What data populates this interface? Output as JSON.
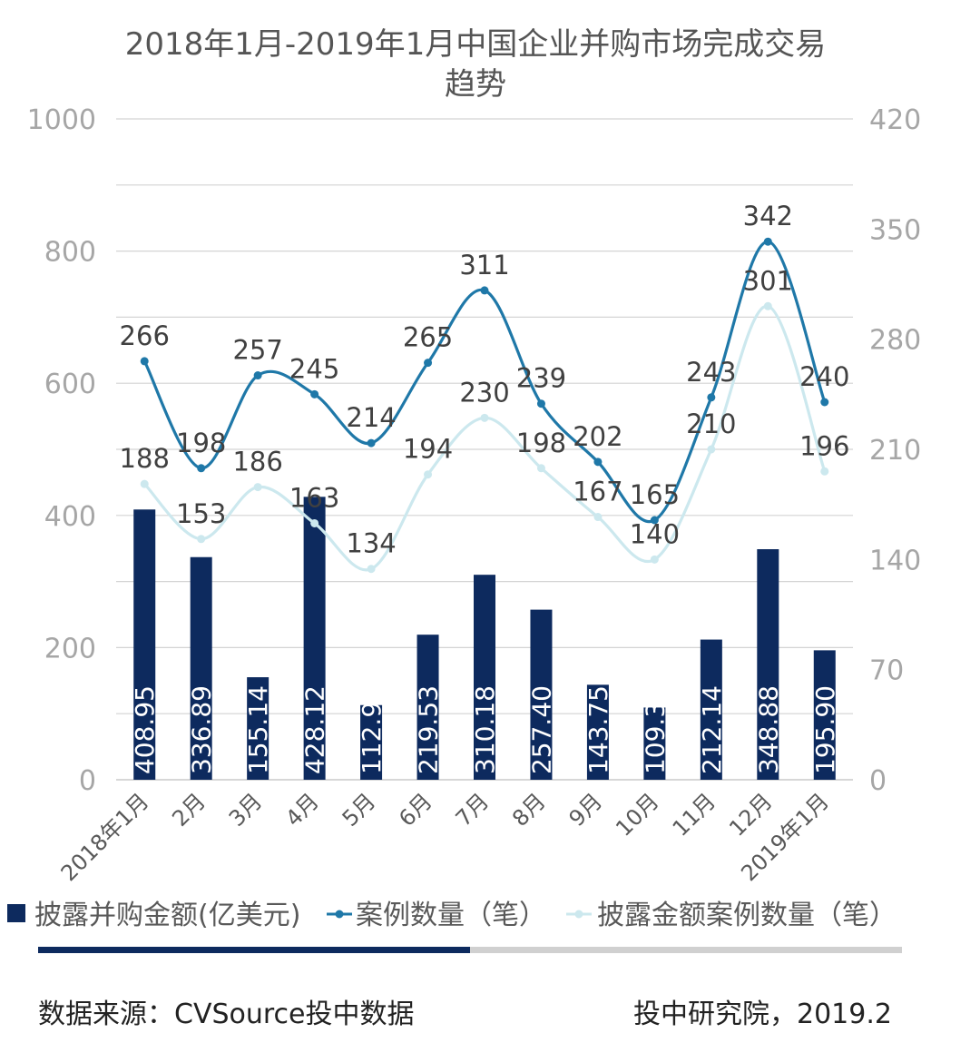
{
  "chart_data": {
    "type": "bar",
    "title_lines": [
      "2018年1月-2019年1月中国企业并购市场完成交易",
      "趋势"
    ],
    "categories": [
      "2018年1月",
      "2月",
      "3月",
      "4月",
      "5月",
      "6月",
      "7月",
      "8月",
      "9月",
      "10月",
      "11月",
      "12月",
      "2019年1月"
    ],
    "y_left_ticks": [
      "0",
      "200",
      "400",
      "600",
      "800",
      "1000"
    ],
    "y_right_ticks": [
      "0",
      "70",
      "140",
      "210",
      "280",
      "350",
      "420"
    ],
    "ylim_left": [
      0,
      1000
    ],
    "ylim_right": [
      0,
      420
    ],
    "grid": true,
    "legend_position": "bottom",
    "series": [
      {
        "name": "披露并购金额(亿美元)",
        "type": "bar",
        "axis": "left",
        "color": "#0d2a5e",
        "values": [
          408.95,
          336.89,
          155.14,
          428.12,
          112.96,
          219.53,
          310.18,
          257.4,
          143.75,
          109.3,
          212.14,
          348.88,
          195.9
        ],
        "labels": [
          "408.95",
          "336.89",
          "155.14",
          "428.12",
          "112.96",
          "219.53",
          "310.18",
          "257.40",
          "143.75",
          "109.30",
          "212.14",
          "348.88",
          "195.90"
        ]
      },
      {
        "name": "案例数量（笔）",
        "type": "line",
        "axis": "right",
        "color": "#1f78a8",
        "values": [
          266,
          198,
          257,
          245,
          214,
          265,
          311,
          239,
          202,
          165,
          243,
          342,
          240
        ]
      },
      {
        "name": "披露金额案例数量（笔）",
        "type": "line",
        "axis": "right",
        "color": "#cce8ee",
        "values": [
          188,
          153,
          186,
          163,
          134,
          194,
          230,
          198,
          167,
          140,
          210,
          301,
          196
        ]
      }
    ]
  },
  "footer": {
    "source": "数据来源：CVSource投中数据",
    "credit": "投中研究院，2019.2"
  }
}
